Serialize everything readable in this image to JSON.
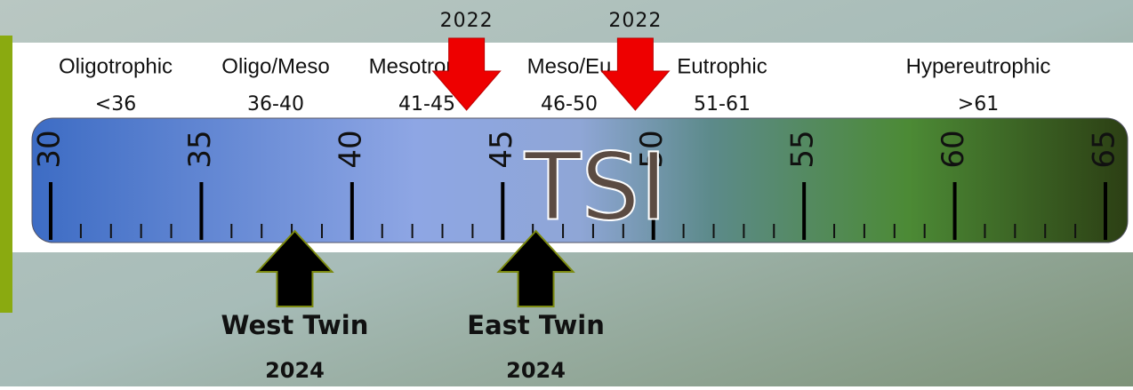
{
  "scale": {
    "label": "TSI",
    "range": [
      30,
      65
    ],
    "ticks": [
      30,
      35,
      40,
      45,
      50,
      55,
      60,
      65
    ]
  },
  "categories": [
    {
      "name": "Oligotrophic",
      "range": "<36"
    },
    {
      "name": "Oligo/Meso",
      "range": "36-40"
    },
    {
      "name": "Mesotrophic",
      "range": "41-45"
    },
    {
      "name": "Meso/Eu",
      "range": "46-50"
    },
    {
      "name": "Eutrophic",
      "range": "51-61"
    },
    {
      "name": "Hypereutrophic",
      "range": ">61"
    }
  ],
  "markers": [
    {
      "label": "2022",
      "tsi": 43.8,
      "color": "#ee0000"
    },
    {
      "label": "2022",
      "tsi": 49.4,
      "color": "#ee0000"
    }
  ],
  "lakes": [
    {
      "name": "West Twin",
      "year": "2024",
      "tsi": 38.1
    },
    {
      "name": "East Twin",
      "year": "2024",
      "tsi": 46.1
    }
  ]
}
